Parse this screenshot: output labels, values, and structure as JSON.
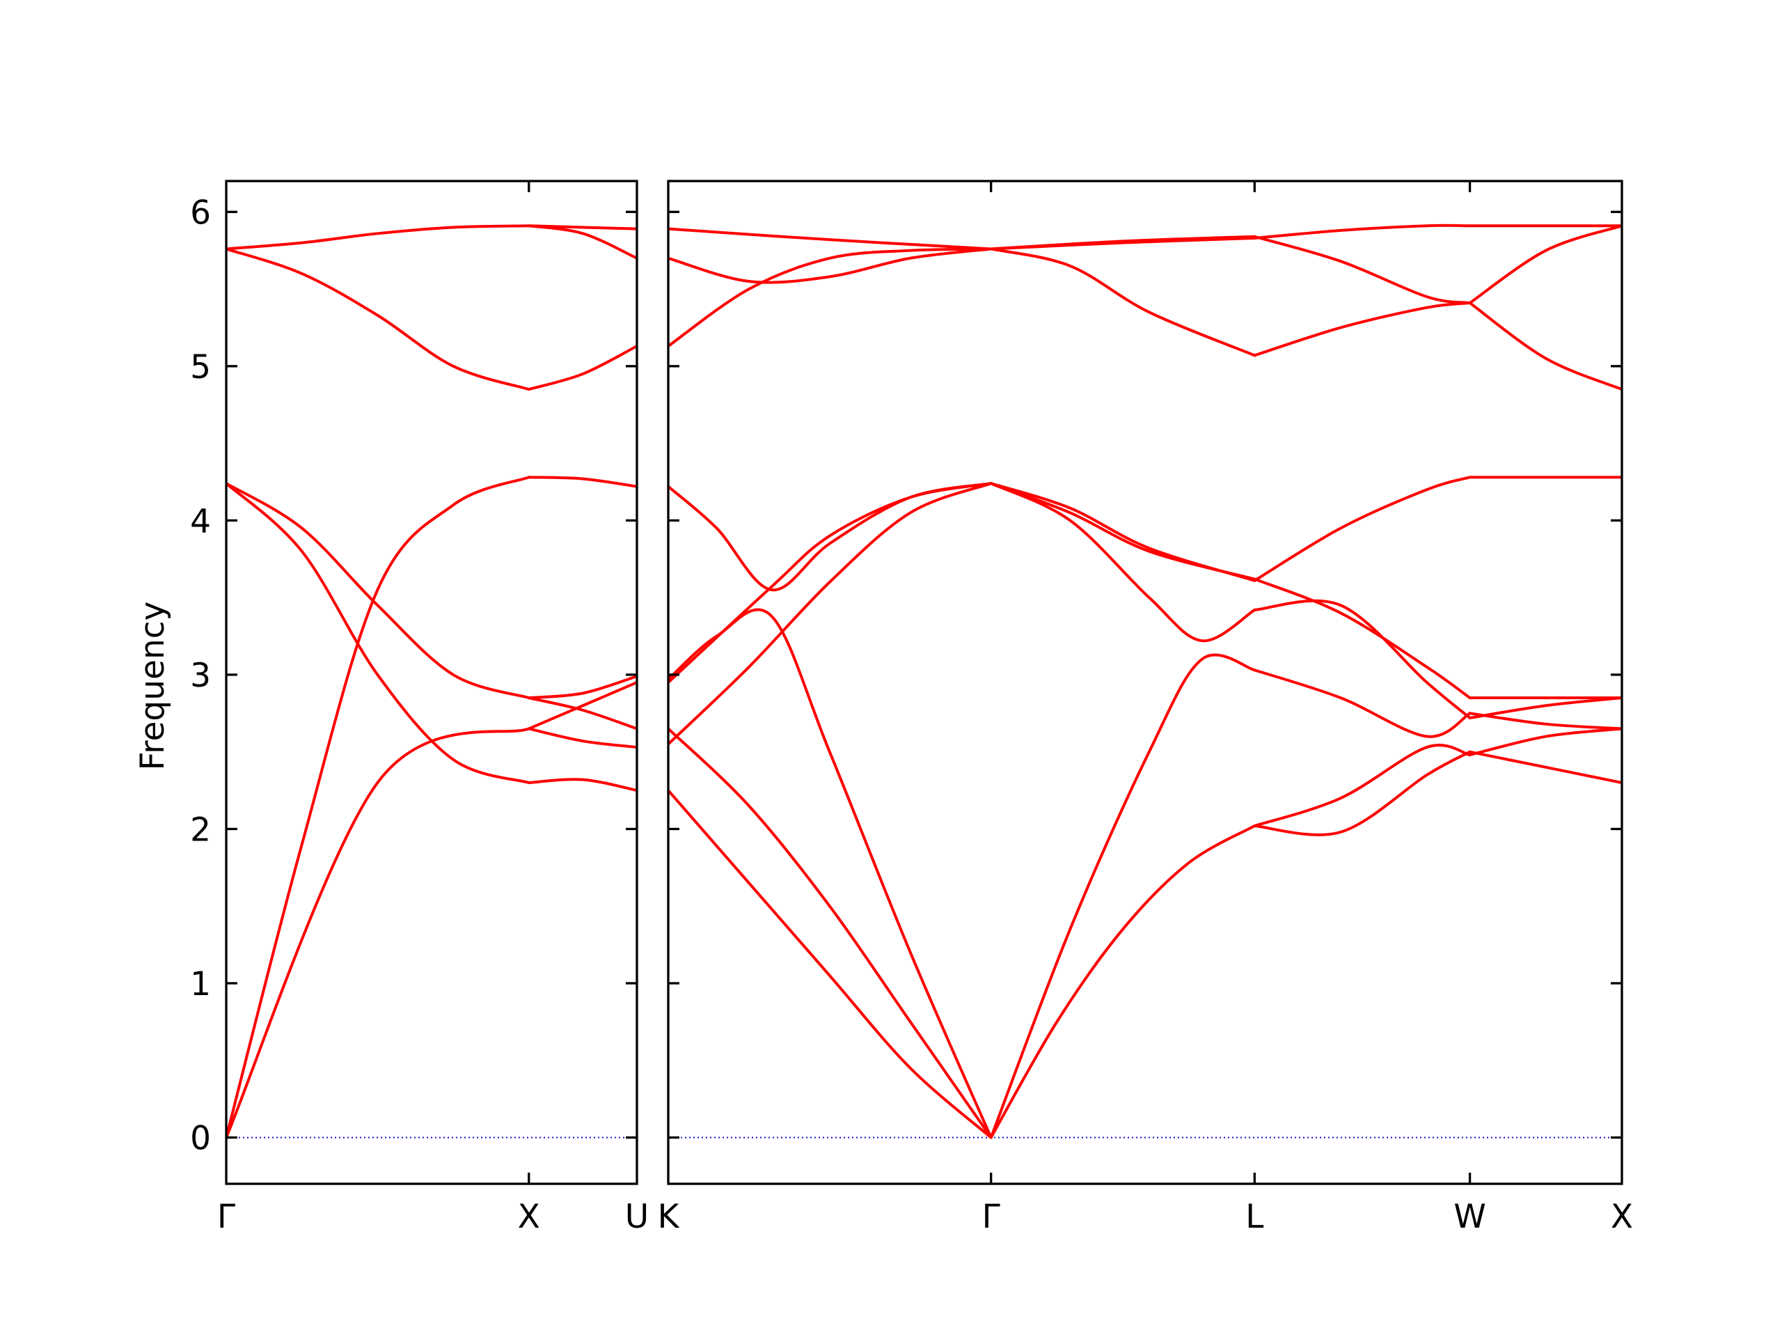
{
  "chart_data": {
    "type": "line",
    "title": "",
    "ylabel": "Frequency",
    "xlabel": "",
    "ylim": [
      -0.3,
      6.2
    ],
    "yticks": [
      0,
      1,
      2,
      3,
      4,
      5,
      6
    ],
    "grid": false,
    "legend": "none",
    "colors": {
      "band": "#ff0000",
      "zero_line": "#0000cc",
      "axes": "#000000"
    },
    "panels": [
      {
        "path_labels": [
          "Γ",
          "X",
          "U"
        ],
        "segments": [
          {
            "from": "Γ",
            "to": "X",
            "bands": [
              [
                [
                  0,
                  0
                ],
                [
                  0.5,
                  2.3
                ],
                [
                  1,
                  2.65
                ]
              ],
              [
                [
                  0,
                  0
                ],
                [
                  0.25,
                  1.9
                ],
                [
                  0.5,
                  3.55
                ],
                [
                  0.75,
                  4.1
                ],
                [
                  1,
                  4.28
                ]
              ],
              [
                [
                  0,
                  4.24
                ],
                [
                  0.25,
                  3.8
                ],
                [
                  0.5,
                  3.0
                ],
                [
                  0.75,
                  2.45
                ],
                [
                  1,
                  2.3
                ]
              ],
              [
                [
                  0,
                  4.24
                ],
                [
                  0.25,
                  3.95
                ],
                [
                  0.5,
                  3.45
                ],
                [
                  0.75,
                  3.0
                ],
                [
                  1,
                  2.85
                ]
              ],
              [
                [
                  0,
                  5.76
                ],
                [
                  0.25,
                  5.6
                ],
                [
                  0.5,
                  5.33
                ],
                [
                  0.75,
                  5.0
                ],
                [
                  1,
                  4.85
                ]
              ],
              [
                [
                  0,
                  5.76
                ],
                [
                  0.25,
                  5.8
                ],
                [
                  0.5,
                  5.86
                ],
                [
                  0.75,
                  5.9
                ],
                [
                  1,
                  5.91
                ]
              ]
            ]
          },
          {
            "from": "X",
            "to": "U",
            "bands": [
              [
                [
                  0,
                  2.3
                ],
                [
                  0.5,
                  2.32
                ],
                [
                  1,
                  2.25
                ]
              ],
              [
                [
                  0,
                  2.65
                ],
                [
                  0.5,
                  2.8
                ],
                [
                  1,
                  2.95
                ]
              ],
              [
                [
                  0,
                  2.65
                ],
                [
                  0.5,
                  2.57
                ],
                [
                  1,
                  2.53
                ]
              ],
              [
                [
                  0,
                  2.85
                ],
                [
                  0.5,
                  2.88
                ],
                [
                  1,
                  2.99
                ]
              ],
              [
                [
                  0,
                  2.85
                ],
                [
                  0.5,
                  2.77
                ],
                [
                  1,
                  2.65
                ]
              ],
              [
                [
                  0,
                  4.28
                ],
                [
                  0.5,
                  4.27
                ],
                [
                  1,
                  4.22
                ]
              ],
              [
                [
                  0,
                  4.85
                ],
                [
                  0.5,
                  4.95
                ],
                [
                  1,
                  5.13
                ]
              ],
              [
                [
                  0,
                  5.91
                ],
                [
                  0.5,
                  5.86
                ],
                [
                  1,
                  5.7
                ]
              ],
              [
                [
                  0,
                  5.91
                ],
                [
                  0.5,
                  5.9
                ],
                [
                  1,
                  5.89
                ]
              ]
            ]
          }
        ]
      },
      {
        "path_labels": [
          "K",
          "Γ",
          "L",
          "W",
          "X"
        ],
        "segments": [
          {
            "from": "K",
            "to": "Γ",
            "bands": [
              [
                [
                  0,
                  2.25
                ],
                [
                  0.25,
                  1.65
                ],
                [
                  0.5,
                  1.05
                ],
                [
                  0.75,
                  0.45
                ],
                [
                  1,
                  0
                ]
              ],
              [
                [
                  0,
                  2.65
                ],
                [
                  0.25,
                  2.15
                ],
                [
                  0.5,
                  1.5
                ],
                [
                  0.75,
                  0.75
                ],
                [
                  1,
                  0
                ]
              ],
              [
                [
                  0,
                  2.97
                ],
                [
                  0.15,
                  3.25
                ],
                [
                  0.32,
                  3.38
                ],
                [
                  0.5,
                  2.5
                ],
                [
                  0.75,
                  1.2
                ],
                [
                  1,
                  0
                ]
              ],
              [
                [
                  0,
                  2.55
                ],
                [
                  0.25,
                  3.05
                ],
                [
                  0.5,
                  3.6
                ],
                [
                  0.75,
                  4.05
                ],
                [
                  1,
                  4.24
                ]
              ],
              [
                [
                  0,
                  2.95
                ],
                [
                  0.32,
                  3.57
                ],
                [
                  0.5,
                  3.9
                ],
                [
                  0.75,
                  4.15
                ],
                [
                  1,
                  4.24
                ]
              ],
              [
                [
                  0,
                  4.22
                ],
                [
                  0.15,
                  3.95
                ],
                [
                  0.32,
                  3.55
                ],
                [
                  0.5,
                  3.85
                ],
                [
                  0.75,
                  4.15
                ],
                [
                  1,
                  4.24
                ]
              ],
              [
                [
                  0,
                  5.13
                ],
                [
                  0.25,
                  5.5
                ],
                [
                  0.5,
                  5.7
                ],
                [
                  0.75,
                  5.75
                ],
                [
                  1,
                  5.76
                ]
              ],
              [
                [
                  0,
                  5.7
                ],
                [
                  0.25,
                  5.55
                ],
                [
                  0.5,
                  5.58
                ],
                [
                  0.75,
                  5.7
                ],
                [
                  1,
                  5.76
                ]
              ],
              [
                [
                  0,
                  5.89
                ],
                [
                  0.5,
                  5.82
                ],
                [
                  1,
                  5.76
                ]
              ]
            ]
          },
          {
            "from": "Γ",
            "to": "L",
            "bands": [
              [
                [
                  0,
                  0
                ],
                [
                  0.25,
                  0.75
                ],
                [
                  0.5,
                  1.35
                ],
                [
                  0.75,
                  1.78
                ],
                [
                  1,
                  2.02
                ]
              ],
              [
                [
                  0,
                  0
                ],
                [
                  0.3,
                  1.35
                ],
                [
                  0.6,
                  2.5
                ],
                [
                  0.8,
                  3.1
                ],
                [
                  1,
                  3.03
                ]
              ],
              [
                [
                  0,
                  4.24
                ],
                [
                  0.3,
                  4.0
                ],
                [
                  0.6,
                  3.5
                ],
                [
                  0.8,
                  3.22
                ],
                [
                  1,
                  3.42
                ]
              ],
              [
                [
                  0,
                  4.24
                ],
                [
                  0.3,
                  4.05
                ],
                [
                  0.6,
                  3.8
                ],
                [
                  1,
                  3.62
                ]
              ],
              [
                [
                  0,
                  4.24
                ],
                [
                  0.3,
                  4.08
                ],
                [
                  0.6,
                  3.82
                ],
                [
                  1,
                  3.61
                ]
              ],
              [
                [
                  0,
                  5.76
                ],
                [
                  0.3,
                  5.65
                ],
                [
                  0.6,
                  5.35
                ],
                [
                  1,
                  5.07
                ]
              ],
              [
                [
                  0,
                  5.76
                ],
                [
                  0.5,
                  5.8
                ],
                [
                  1,
                  5.83
                ]
              ],
              [
                [
                  0,
                  5.76
                ],
                [
                  0.5,
                  5.81
                ],
                [
                  1,
                  5.84
                ]
              ]
            ]
          },
          {
            "from": "L",
            "to": "W",
            "bands": [
              [
                [
                  0,
                  2.02
                ],
                [
                  0.4,
                  1.98
                ],
                [
                  0.8,
                  2.35
                ],
                [
                  1,
                  2.5
                ]
              ],
              [
                [
                  0,
                  2.02
                ],
                [
                  0.4,
                  2.2
                ],
                [
                  0.8,
                  2.53
                ],
                [
                  1,
                  2.48
                ]
              ],
              [
                [
                  0,
                  3.03
                ],
                [
                  0.4,
                  2.85
                ],
                [
                  0.8,
                  2.6
                ],
                [
                  1,
                  2.75
                ]
              ],
              [
                [
                  0,
                  3.42
                ],
                [
                  0.4,
                  3.45
                ],
                [
                  0.8,
                  2.95
                ],
                [
                  1,
                  2.72
                ]
              ],
              [
                [
                  0,
                  3.62
                ],
                [
                  0.4,
                  3.4
                ],
                [
                  0.8,
                  3.05
                ],
                [
                  1,
                  2.85
                ]
              ],
              [
                [
                  0,
                  3.61
                ],
                [
                  0.4,
                  3.95
                ],
                [
                  0.8,
                  4.2
                ],
                [
                  1,
                  4.28
                ]
              ],
              [
                [
                  0,
                  5.07
                ],
                [
                  0.4,
                  5.25
                ],
                [
                  0.8,
                  5.38
                ],
                [
                  1,
                  5.41
                ]
              ],
              [
                [
                  0,
                  5.84
                ],
                [
                  0.4,
                  5.68
                ],
                [
                  0.8,
                  5.45
                ],
                [
                  1,
                  5.41
                ]
              ],
              [
                [
                  0,
                  5.83
                ],
                [
                  0.4,
                  5.88
                ],
                [
                  0.8,
                  5.91
                ],
                [
                  1,
                  5.91
                ]
              ]
            ]
          },
          {
            "from": "W",
            "to": "X",
            "bands": [
              [
                [
                  0,
                  2.5
                ],
                [
                  0.5,
                  2.4
                ],
                [
                  1,
                  2.3
                ]
              ],
              [
                [
                  0,
                  2.48
                ],
                [
                  0.5,
                  2.6
                ],
                [
                  1,
                  2.65
                ]
              ],
              [
                [
                  0,
                  2.75
                ],
                [
                  0.5,
                  2.68
                ],
                [
                  1,
                  2.65
                ]
              ],
              [
                [
                  0,
                  2.72
                ],
                [
                  0.5,
                  2.8
                ],
                [
                  1,
                  2.85
                ]
              ],
              [
                [
                  0,
                  2.85
                ],
                [
                  0.5,
                  2.85
                ],
                [
                  1,
                  2.85
                ]
              ],
              [
                [
                  0,
                  4.28
                ],
                [
                  0.5,
                  4.28
                ],
                [
                  1,
                  4.28
                ]
              ],
              [
                [
                  0,
                  5.41
                ],
                [
                  0.5,
                  5.05
                ],
                [
                  1,
                  4.85
                ]
              ],
              [
                [
                  0,
                  5.41
                ],
                [
                  0.5,
                  5.75
                ],
                [
                  1,
                  5.91
                ]
              ],
              [
                [
                  0,
                  5.91
                ],
                [
                  0.5,
                  5.91
                ],
                [
                  1,
                  5.91
                ]
              ]
            ]
          }
        ]
      }
    ]
  }
}
